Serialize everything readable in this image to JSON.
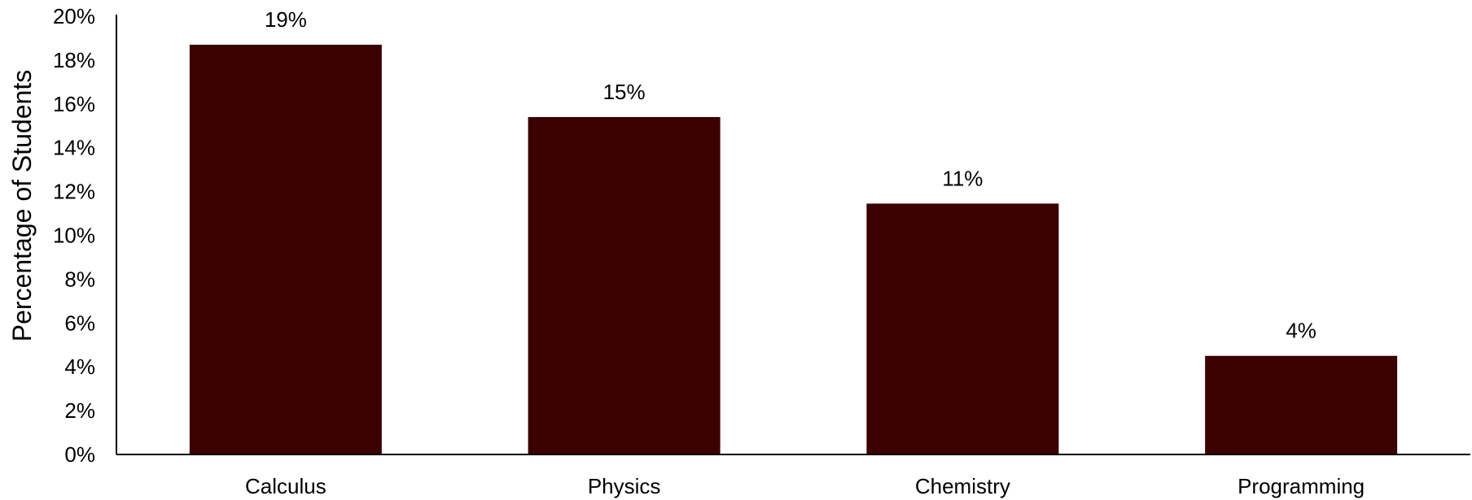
{
  "chart_data": {
    "type": "bar",
    "categories": [
      "Calculus",
      "Physics",
      "Chemistry",
      "Programming"
    ],
    "values": [
      18.7,
      15.4,
      11.45,
      4.5
    ],
    "data_labels": [
      "19%",
      "15%",
      "11%",
      "4%"
    ],
    "title": "",
    "xlabel": "",
    "ylabel": "Percentage of Students",
    "ylim": [
      0,
      20
    ],
    "yticks": [
      0,
      2,
      4,
      6,
      8,
      10,
      12,
      14,
      16,
      18,
      20
    ],
    "ytick_labels": [
      "0%",
      "2%",
      "4%",
      "6%",
      "8%",
      "10%",
      "12%",
      "14%",
      "16%",
      "18%",
      "20%"
    ],
    "grid": false,
    "legend": "none",
    "colors": {
      "bar": "#3b0000",
      "axis": "#000000"
    }
  }
}
